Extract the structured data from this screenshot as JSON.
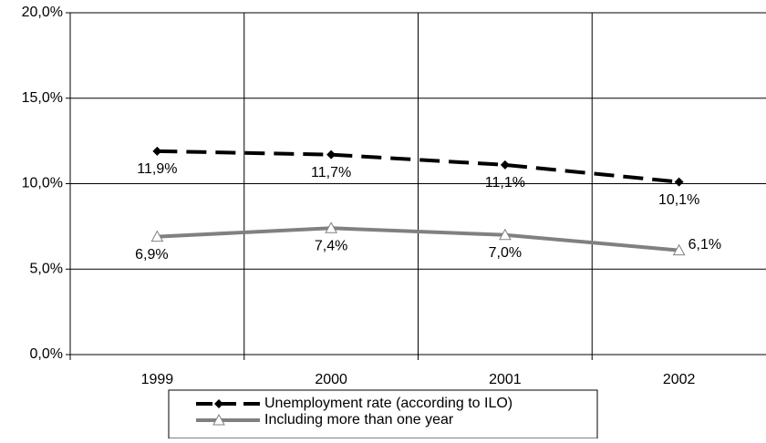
{
  "chart_data": {
    "type": "line",
    "categories": [
      "1999",
      "2000",
      "2001",
      "2002"
    ],
    "series": [
      {
        "name": "Unemployment rate (according to ILO)",
        "color": "#000000",
        "line_style": "dashed",
        "marker": "diamond",
        "values": [
          11.9,
          11.7,
          11.1,
          10.1
        ],
        "value_labels": [
          "11,9%",
          "11,7%",
          "11,1%",
          "10,1%"
        ]
      },
      {
        "name": "Including more than one year",
        "color": "#808080",
        "line_style": "solid",
        "marker": "triangle",
        "values": [
          6.9,
          7.4,
          7.0,
          6.1
        ],
        "value_labels": [
          "6,9%",
          "7,4%",
          "7,0%",
          "6,1%"
        ]
      }
    ],
    "ylim": [
      0,
      20
    ],
    "yticks": [
      {
        "value": 0,
        "label": "0,0%"
      },
      {
        "value": 5,
        "label": "5,0%"
      },
      {
        "value": 10,
        "label": "10,0%"
      },
      {
        "value": 15,
        "label": "15,0%"
      },
      {
        "value": 20,
        "label": "20,0%"
      }
    ],
    "grid": true,
    "legend": "bottom"
  }
}
